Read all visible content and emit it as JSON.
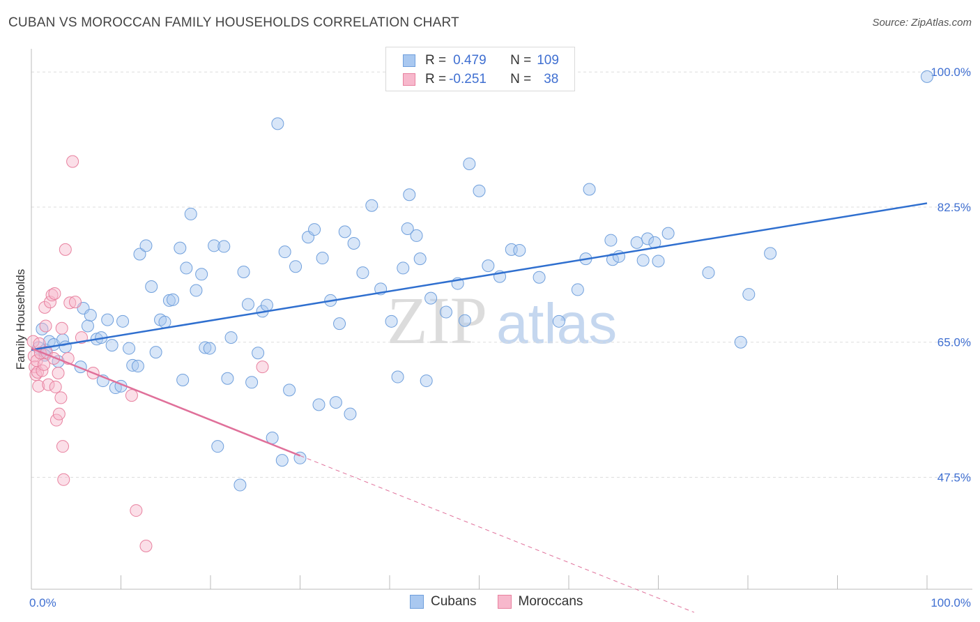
{
  "title": "CUBAN VS MOROCCAN FAMILY HOUSEHOLDS CORRELATION CHART",
  "source": "Source: ZipAtlas.com",
  "watermark": {
    "zip": "ZIP",
    "atlas": "atlas"
  },
  "colors": {
    "cubans_fill": "#a9c8f0",
    "cubans_stroke": "#6f9fdc",
    "cubans_line": "#2f6fcf",
    "moroccans_fill": "#f7b8cc",
    "moroccans_stroke": "#e8819f",
    "moroccans_line": "#e0709a",
    "tick_label": "#3f6fd1",
    "grid": "#dddddd"
  },
  "legend_top": [
    {
      "r_label": "R = ",
      "r_value": "0.479",
      "n_label": "N = ",
      "n_value": "109"
    },
    {
      "r_label": "R = ",
      "r_value": "-0.251",
      "n_label": "N = ",
      "n_value": "38"
    }
  ],
  "legend_bottom": [
    "Cubans",
    "Moroccans"
  ],
  "chart_data": {
    "type": "scatter",
    "xlabel": "",
    "ylabel": "Family Households",
    "xlim": [
      0,
      100
    ],
    "ylim": [
      33.0,
      103.0
    ],
    "x_tick_labels": [
      {
        "value": 0,
        "label": "0.0%"
      },
      {
        "value": 100,
        "label": "100.0%"
      }
    ],
    "y_ticks": [
      {
        "value": 47.5,
        "label": "47.5%"
      },
      {
        "value": 65.0,
        "label": "65.0%"
      },
      {
        "value": 82.5,
        "label": "82.5%"
      },
      {
        "value": 100.0,
        "label": "100.0%"
      }
    ],
    "series": [
      {
        "name": "Cubans",
        "r": 0.479,
        "n": 109,
        "trend": {
          "x": [
            0.0,
            100.0
          ],
          "y": [
            64.0,
            83.0
          ]
        },
        "points": [
          [
            0.8,
            64.3
          ],
          [
            1.2,
            66.7
          ],
          [
            1.6,
            64.0
          ],
          [
            2.0,
            65.1
          ],
          [
            2.5,
            64.7
          ],
          [
            3.0,
            62.5
          ],
          [
            3.5,
            65.3
          ],
          [
            3.8,
            64.4
          ],
          [
            1.5,
            63.3
          ],
          [
            5.5,
            61.8
          ],
          [
            5.8,
            69.4
          ],
          [
            6.3,
            67.1
          ],
          [
            6.6,
            68.5
          ],
          [
            7.3,
            65.4
          ],
          [
            7.8,
            65.6
          ],
          [
            8.0,
            60.0
          ],
          [
            8.5,
            67.9
          ],
          [
            9.0,
            64.6
          ],
          [
            9.4,
            59.1
          ],
          [
            10.0,
            59.3
          ],
          [
            10.2,
            67.7
          ],
          [
            10.9,
            64.2
          ],
          [
            11.3,
            62.0
          ],
          [
            11.9,
            61.9
          ],
          [
            12.1,
            76.4
          ],
          [
            12.8,
            77.5
          ],
          [
            13.4,
            72.2
          ],
          [
            13.9,
            63.7
          ],
          [
            14.4,
            67.9
          ],
          [
            14.9,
            67.6
          ],
          [
            15.4,
            70.4
          ],
          [
            15.8,
            70.5
          ],
          [
            16.6,
            77.2
          ],
          [
            16.9,
            60.1
          ],
          [
            17.3,
            74.6
          ],
          [
            17.8,
            81.6
          ],
          [
            18.4,
            71.7
          ],
          [
            19.0,
            73.8
          ],
          [
            19.4,
            64.3
          ],
          [
            19.9,
            64.2
          ],
          [
            20.4,
            77.5
          ],
          [
            20.8,
            51.5
          ],
          [
            21.5,
            77.4
          ],
          [
            21.9,
            60.3
          ],
          [
            22.3,
            65.6
          ],
          [
            23.3,
            46.5
          ],
          [
            23.7,
            74.1
          ],
          [
            24.2,
            69.9
          ],
          [
            24.6,
            59.8
          ],
          [
            25.3,
            63.6
          ],
          [
            25.8,
            69.0
          ],
          [
            26.3,
            69.8
          ],
          [
            26.9,
            52.6
          ],
          [
            27.5,
            93.3
          ],
          [
            28.0,
            49.7
          ],
          [
            28.3,
            76.7
          ],
          [
            28.8,
            58.8
          ],
          [
            29.5,
            74.8
          ],
          [
            30.0,
            50.0
          ],
          [
            30.9,
            78.6
          ],
          [
            31.6,
            79.6
          ],
          [
            32.1,
            56.9
          ],
          [
            32.5,
            75.9
          ],
          [
            33.4,
            70.4
          ],
          [
            34.0,
            57.2
          ],
          [
            34.4,
            67.4
          ],
          [
            35.0,
            79.3
          ],
          [
            35.6,
            55.7
          ],
          [
            36.0,
            77.8
          ],
          [
            37.0,
            74.0
          ],
          [
            38.0,
            82.7
          ],
          [
            39.0,
            71.9
          ],
          [
            40.2,
            67.7
          ],
          [
            40.9,
            60.5
          ],
          [
            41.5,
            74.6
          ],
          [
            42.0,
            79.7
          ],
          [
            42.2,
            84.1
          ],
          [
            43.0,
            78.8
          ],
          [
            43.4,
            75.8
          ],
          [
            44.1,
            60.0
          ],
          [
            44.6,
            70.7
          ],
          [
            46.3,
            68.9
          ],
          [
            47.6,
            72.6
          ],
          [
            48.4,
            67.8
          ],
          [
            48.9,
            88.1
          ],
          [
            50.0,
            84.6
          ],
          [
            51.0,
            74.9
          ],
          [
            52.3,
            73.5
          ],
          [
            53.6,
            77.0
          ],
          [
            54.5,
            76.9
          ],
          [
            56.7,
            73.4
          ],
          [
            58.9,
            67.7
          ],
          [
            61.0,
            71.8
          ],
          [
            61.9,
            75.8
          ],
          [
            62.3,
            84.8
          ],
          [
            64.7,
            78.2
          ],
          [
            64.9,
            75.7
          ],
          [
            65.6,
            76.1
          ],
          [
            67.6,
            77.9
          ],
          [
            68.3,
            75.6
          ],
          [
            68.8,
            78.4
          ],
          [
            69.6,
            77.9
          ],
          [
            70.0,
            75.5
          ],
          [
            71.1,
            79.1
          ],
          [
            75.6,
            74.0
          ],
          [
            79.2,
            65.0
          ],
          [
            80.1,
            71.2
          ],
          [
            82.5,
            76.5
          ],
          [
            100.0,
            99.4
          ]
        ]
      },
      {
        "name": "Moroccans",
        "r": -0.251,
        "n": 38,
        "trend": {
          "x": [
            0.0,
            30.0
          ],
          "y": [
            64.2,
            50.3
          ]
        },
        "trend_extended": {
          "x": [
            30.0,
            74.0
          ],
          "y": [
            50.3,
            30.0
          ]
        },
        "points": [
          [
            0.2,
            65.1
          ],
          [
            0.3,
            63.2
          ],
          [
            0.4,
            61.8
          ],
          [
            0.5,
            60.8
          ],
          [
            0.6,
            62.6
          ],
          [
            0.7,
            61.1
          ],
          [
            0.8,
            59.3
          ],
          [
            0.9,
            64.8
          ],
          [
            1.0,
            63.6
          ],
          [
            1.2,
            61.3
          ],
          [
            1.4,
            62.1
          ],
          [
            1.5,
            69.5
          ],
          [
            1.6,
            67.1
          ],
          [
            1.7,
            63.7
          ],
          [
            1.9,
            59.5
          ],
          [
            2.1,
            70.2
          ],
          [
            2.3,
            71.1
          ],
          [
            2.5,
            62.9
          ],
          [
            2.6,
            71.3
          ],
          [
            2.7,
            59.2
          ],
          [
            2.8,
            54.9
          ],
          [
            3.0,
            61.0
          ],
          [
            3.1,
            55.7
          ],
          [
            3.3,
            57.8
          ],
          [
            3.4,
            66.8
          ],
          [
            3.5,
            51.5
          ],
          [
            3.6,
            47.2
          ],
          [
            3.8,
            77.0
          ],
          [
            4.1,
            62.9
          ],
          [
            4.3,
            70.1
          ],
          [
            4.6,
            88.4
          ],
          [
            4.9,
            70.2
          ],
          [
            5.6,
            65.6
          ],
          [
            6.9,
            61.0
          ],
          [
            11.2,
            58.1
          ],
          [
            11.7,
            43.2
          ],
          [
            12.8,
            38.6
          ],
          [
            25.8,
            61.8
          ]
        ]
      }
    ]
  }
}
